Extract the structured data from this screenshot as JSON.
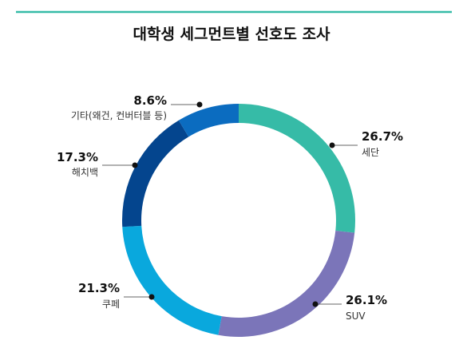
{
  "chart_data": {
    "type": "pie",
    "title": "대학생 세그먼트별 선호도 조사",
    "unit": "%",
    "slices": [
      {
        "label": "세단",
        "value": 26.7,
        "display": "26.7%",
        "color": "#36bba7"
      },
      {
        "label": "SUV",
        "value": 26.1,
        "display": "26.1%",
        "color": "#7b75b9"
      },
      {
        "label": "쿠페",
        "value": 21.3,
        "display": "21.3%",
        "color": "#09a8dd"
      },
      {
        "label": "해치백",
        "value": 17.3,
        "display": "17.3%",
        "color": "#04458e"
      },
      {
        "label": "기타(왜건, 컨버터블 등)",
        "value": 8.6,
        "display": "8.6%",
        "color": "#0b6cc0"
      }
    ],
    "accent_line_color": "#36bba7"
  }
}
